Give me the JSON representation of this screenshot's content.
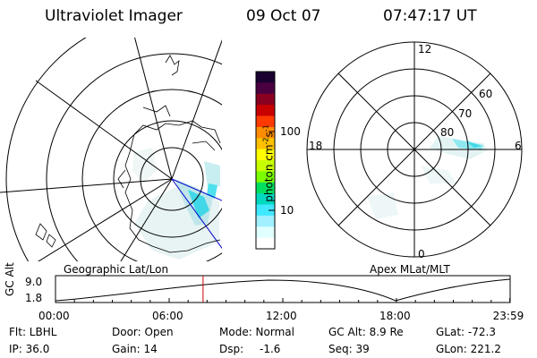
{
  "header": {
    "instrument": "Ultraviolet Imager",
    "date": "09 Oct 07",
    "time": "07:47:17 UT"
  },
  "colorbar": {
    "unit_label": "photon cm",
    "unit_exp1": "-2",
    "unit_s": "s",
    "unit_exp2": "-1",
    "tick_100": "100",
    "tick_10": "10",
    "colors": [
      "#1a0030",
      "#4a0040",
      "#8a0020",
      "#c80000",
      "#ff3a00",
      "#ff8c00",
      "#ffc000",
      "#ffff00",
      "#c8ff00",
      "#7cff00",
      "#00e060",
      "#00d8c0",
      "#40e8ff",
      "#a0f0ff",
      "#e0ffff",
      "#ffffff"
    ]
  },
  "left_map": {
    "label": "Geographic Lat/Lon"
  },
  "right_map": {
    "label": "Apex MLat/MLT",
    "mlt_top": "12",
    "mlt_left": "18",
    "mlt_right": "6",
    "mlt_bottom": "0",
    "lat_60": "60",
    "lat_70": "70",
    "lat_80": "80"
  },
  "altitude_plot": {
    "ylabel": "GC Alt",
    "y_max": "9.0",
    "y_min": "1.8",
    "x_ticks": [
      "00:00",
      "06:00",
      "12:00",
      "18:00",
      "23:59"
    ],
    "marker_time_hours": 7.79,
    "marker_color": "#cc0000"
  },
  "info": {
    "flt": "Flt: LBHL",
    "door": "Door: Open",
    "mode": "Mode: Normal",
    "gc_alt": "GC Alt: 8.9 Re",
    "glat": "GLat: -72.3",
    "ip": "IP: 36.0",
    "gain": "Gain: 14",
    "dsp_label": "Dsp:",
    "dsp_value": "-1.6",
    "seq": "Seq: 39",
    "glon": "GLon: 221.2"
  }
}
